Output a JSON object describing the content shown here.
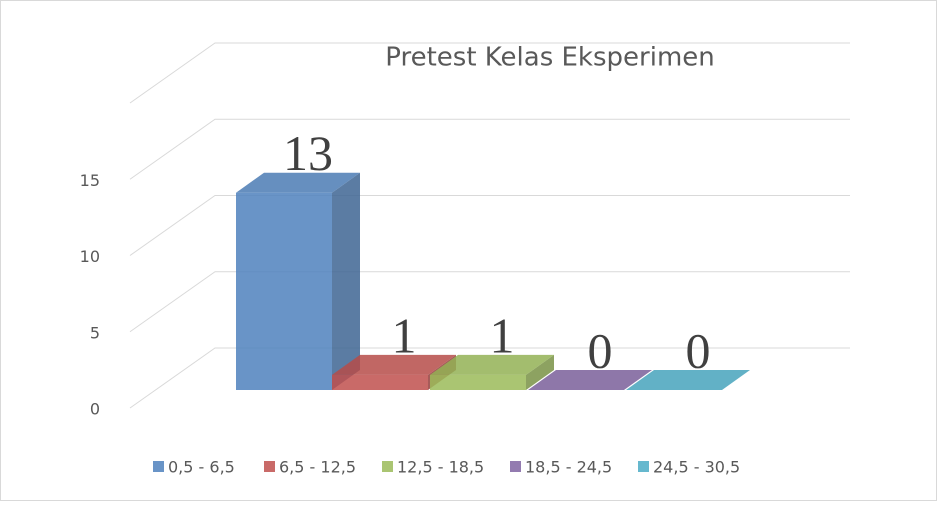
{
  "chart_data": {
    "type": "bar3d",
    "title": "Pretest Kelas Eksperimen",
    "series": [
      {
        "name": "0,5 - 6,5",
        "color": "#4f81bd",
        "values": [
          13
        ]
      },
      {
        "name": "6,5 - 12,5",
        "color": "#c0504d",
        "values": [
          1
        ]
      },
      {
        "name": "12,5 - 18,5",
        "color": "#9bbb59",
        "values": [
          1
        ]
      },
      {
        "name": "18,5 - 24,5",
        "color": "#8064a2",
        "values": [
          0
        ]
      },
      {
        "name": "24,5 - 30,5",
        "color": "#4bacc6",
        "values": [
          0
        ]
      }
    ],
    "ylim": [
      0,
      20
    ],
    "yticks": [
      0,
      5,
      10,
      15
    ],
    "grid": true
  }
}
